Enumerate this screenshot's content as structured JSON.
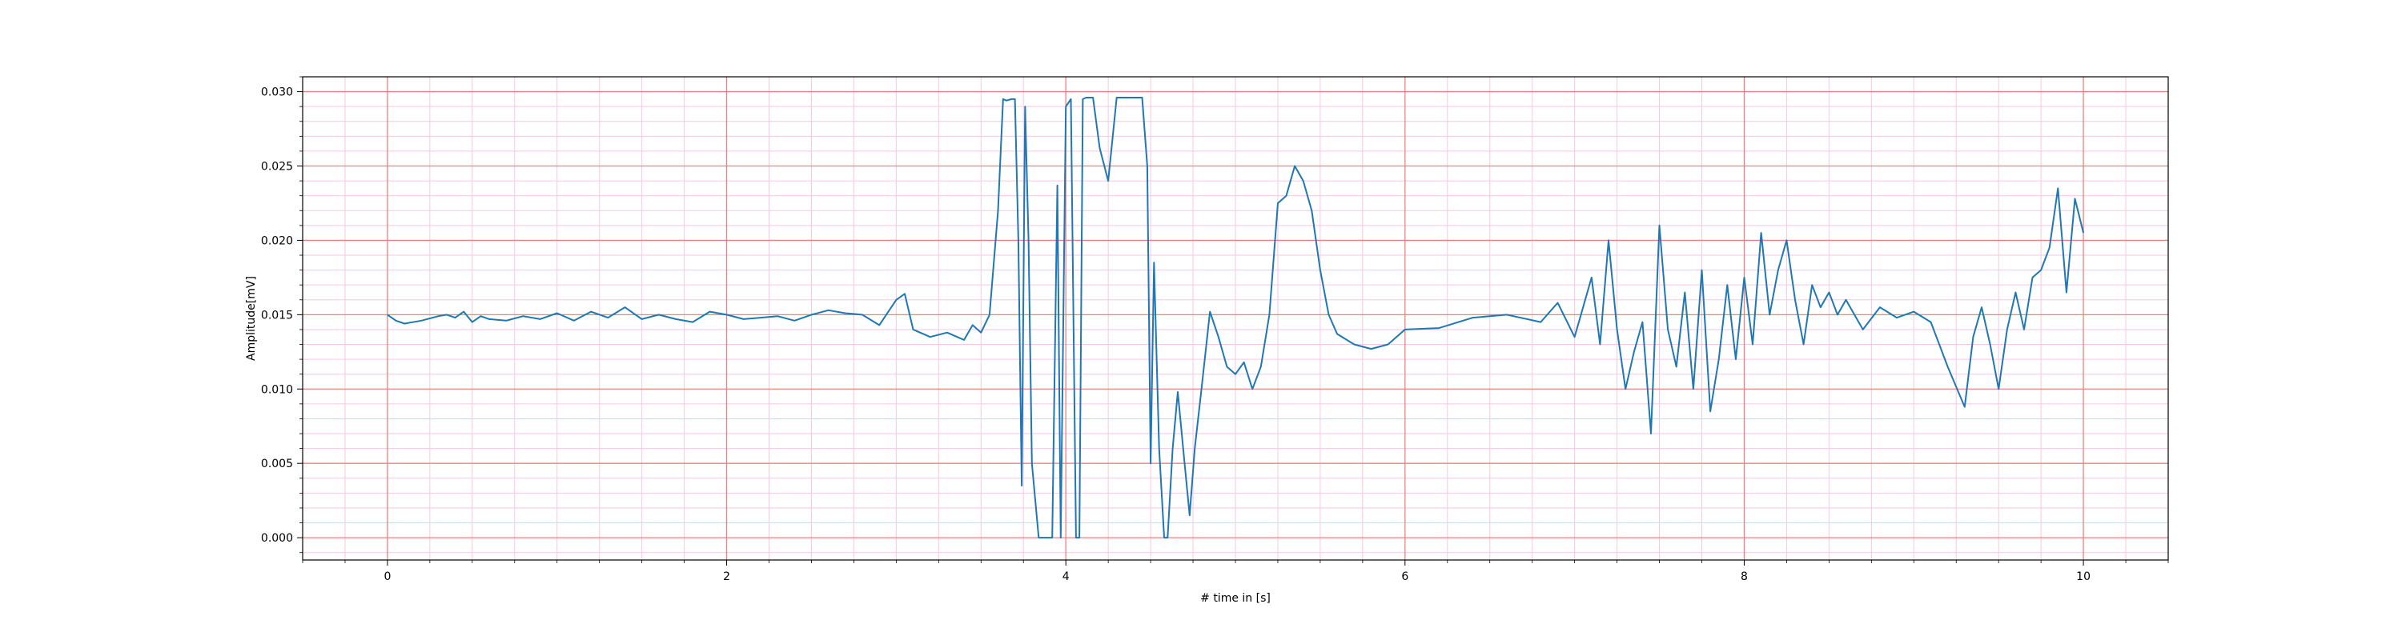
{
  "chart_data": {
    "type": "line",
    "title": "",
    "xlabel": "# time in [s]",
    "ylabel": "Amplitude[mV]",
    "xlim": [
      -0.5,
      10.5
    ],
    "ylim": [
      -0.0015,
      0.031
    ],
    "x_ticks": [
      0,
      2,
      4,
      6,
      8,
      10
    ],
    "x_tick_labels": [
      "0",
      "2",
      "4",
      "6",
      "8",
      "10"
    ],
    "y_ticks": [
      0.0,
      0.005,
      0.01,
      0.015,
      0.02,
      0.025,
      0.03
    ],
    "y_tick_labels": [
      "0.000",
      "0.005",
      "0.010",
      "0.015",
      "0.020",
      "0.025",
      "0.030"
    ],
    "grid": {
      "major": true,
      "minor": true
    },
    "colors": {
      "line": "#1f77b4",
      "major_grid": "#f08080",
      "minor_grid": "#f7c6e4",
      "axes": "#000000"
    },
    "series": [
      {
        "name": "",
        "x": [
          0,
          0.05,
          0.1,
          0.2,
          0.3,
          0.35,
          0.4,
          0.45,
          0.5,
          0.55,
          0.6,
          0.7,
          0.8,
          0.9,
          1.0,
          1.1,
          1.2,
          1.3,
          1.4,
          1.5,
          1.6,
          1.7,
          1.8,
          1.9,
          2.0,
          2.1,
          2.2,
          2.3,
          2.4,
          2.5,
          2.6,
          2.7,
          2.8,
          2.9,
          3.0,
          3.05,
          3.1,
          3.2,
          3.3,
          3.4,
          3.45,
          3.5,
          3.55,
          3.6,
          3.63,
          3.65,
          3.68,
          3.7,
          3.72,
          3.74,
          3.76,
          3.78,
          3.8,
          3.84,
          3.88,
          3.92,
          3.95,
          3.97,
          4.0,
          4.03,
          4.06,
          4.08,
          4.1,
          4.12,
          4.14,
          4.16,
          4.2,
          4.25,
          4.3,
          4.35,
          4.4,
          4.45,
          4.48,
          4.5,
          4.52,
          4.55,
          4.58,
          4.6,
          4.63,
          4.66,
          4.7,
          4.73,
          4.76,
          4.8,
          4.85,
          4.9,
          4.95,
          5.0,
          5.05,
          5.1,
          5.15,
          5.2,
          5.25,
          5.3,
          5.35,
          5.4,
          5.45,
          5.5,
          5.55,
          5.6,
          5.7,
          5.8,
          5.9,
          6.0,
          6.2,
          6.4,
          6.6,
          6.8,
          6.9,
          7.0,
          7.05,
          7.1,
          7.15,
          7.2,
          7.25,
          7.3,
          7.35,
          7.4,
          7.45,
          7.5,
          7.55,
          7.6,
          7.65,
          7.7,
          7.75,
          7.8,
          7.85,
          7.9,
          7.95,
          8.0,
          8.05,
          8.1,
          8.15,
          8.2,
          8.25,
          8.3,
          8.35,
          8.4,
          8.45,
          8.5,
          8.55,
          8.6,
          8.7,
          8.8,
          8.9,
          9.0,
          9.1,
          9.2,
          9.3,
          9.35,
          9.4,
          9.45,
          9.5,
          9.55,
          9.6,
          9.65,
          9.7,
          9.75,
          9.8,
          9.85,
          9.9,
          9.95,
          10.0
        ],
        "y": [
          0.015,
          0.0146,
          0.0144,
          0.0146,
          0.0149,
          0.015,
          0.0148,
          0.0152,
          0.0145,
          0.0149,
          0.0147,
          0.0146,
          0.0149,
          0.0147,
          0.0151,
          0.0146,
          0.0152,
          0.0148,
          0.0155,
          0.0147,
          0.015,
          0.0147,
          0.0145,
          0.0152,
          0.015,
          0.0147,
          0.0148,
          0.0149,
          0.0146,
          0.015,
          0.0153,
          0.0151,
          0.015,
          0.0143,
          0.016,
          0.0164,
          0.014,
          0.0135,
          0.0138,
          0.0133,
          0.0143,
          0.0138,
          0.015,
          0.022,
          0.0295,
          0.0294,
          0.0295,
          0.0295,
          0.02,
          0.0035,
          0.029,
          0.02,
          0.005,
          0.0,
          0.0,
          0.0,
          0.0237,
          0.0,
          0.029,
          0.0295,
          0.0,
          0.0,
          0.0295,
          0.0296,
          0.0296,
          0.0296,
          0.0262,
          0.024,
          0.0296,
          0.0296,
          0.0296,
          0.0296,
          0.025,
          0.005,
          0.0185,
          0.006,
          0.0,
          0.0,
          0.006,
          0.0098,
          0.005,
          0.0015,
          0.006,
          0.01,
          0.0152,
          0.0135,
          0.0115,
          0.011,
          0.0118,
          0.01,
          0.0115,
          0.015,
          0.0225,
          0.023,
          0.025,
          0.024,
          0.022,
          0.018,
          0.015,
          0.0137,
          0.013,
          0.0127,
          0.013,
          0.014,
          0.0141,
          0.0148,
          0.015,
          0.0145,
          0.0158,
          0.0135,
          0.0155,
          0.0175,
          0.013,
          0.02,
          0.014,
          0.01,
          0.0125,
          0.0145,
          0.007,
          0.021,
          0.014,
          0.0115,
          0.0165,
          0.01,
          0.018,
          0.0085,
          0.012,
          0.017,
          0.012,
          0.0175,
          0.013,
          0.0205,
          0.015,
          0.018,
          0.02,
          0.016,
          0.013,
          0.017,
          0.0155,
          0.0165,
          0.015,
          0.016,
          0.014,
          0.0155,
          0.0148,
          0.0152,
          0.0145,
          0.0115,
          0.0088,
          0.0135,
          0.0155,
          0.013,
          0.01,
          0.014,
          0.0165,
          0.014,
          0.0175,
          0.018,
          0.0195,
          0.0235,
          0.0165,
          0.0228,
          0.0205
        ]
      }
    ]
  }
}
